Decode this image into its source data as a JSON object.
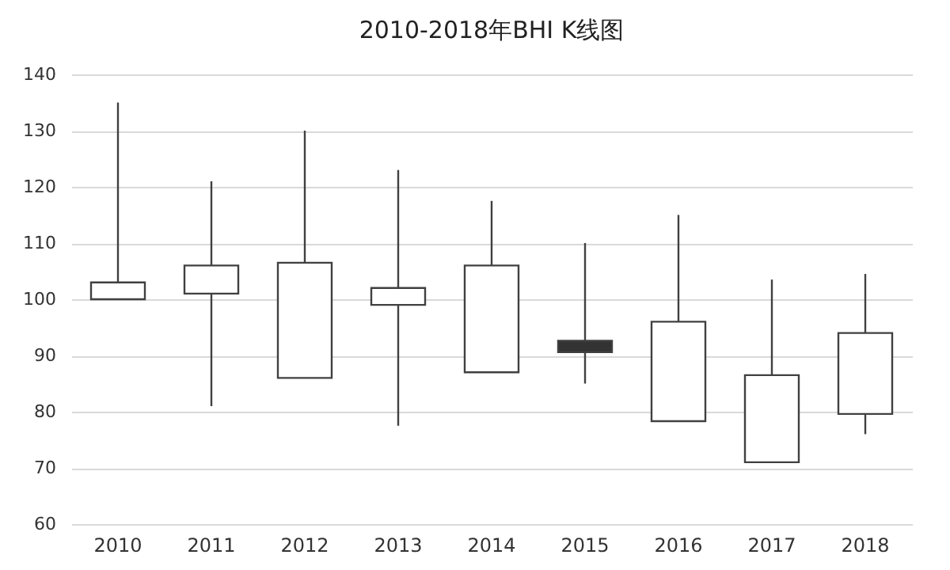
{
  "chart_data": {
    "type": "candlestick",
    "title": "2010-2018年BHI K线图",
    "categories": [
      "2010",
      "2011",
      "2012",
      "2013",
      "2014",
      "2015",
      "2016",
      "2017",
      "2018"
    ],
    "ohlc": [
      [
        100,
        135,
        100,
        103
      ],
      [
        101,
        121,
        81,
        106
      ],
      [
        86,
        130,
        86,
        106.5
      ],
      [
        99,
        123,
        77.5,
        102
      ],
      [
        87,
        117.5,
        87,
        106
      ],
      [
        92.6,
        110,
        85,
        90.6
      ],
      [
        78.3,
        115,
        78.3,
        96
      ],
      [
        71,
        103.5,
        71,
        86.5
      ],
      [
        79.6,
        104.5,
        76,
        94
      ]
    ],
    "ylim": [
      60,
      140
    ],
    "yticks": [
      60,
      70,
      80,
      90,
      100,
      110,
      120,
      130,
      140
    ],
    "grid": "y"
  }
}
